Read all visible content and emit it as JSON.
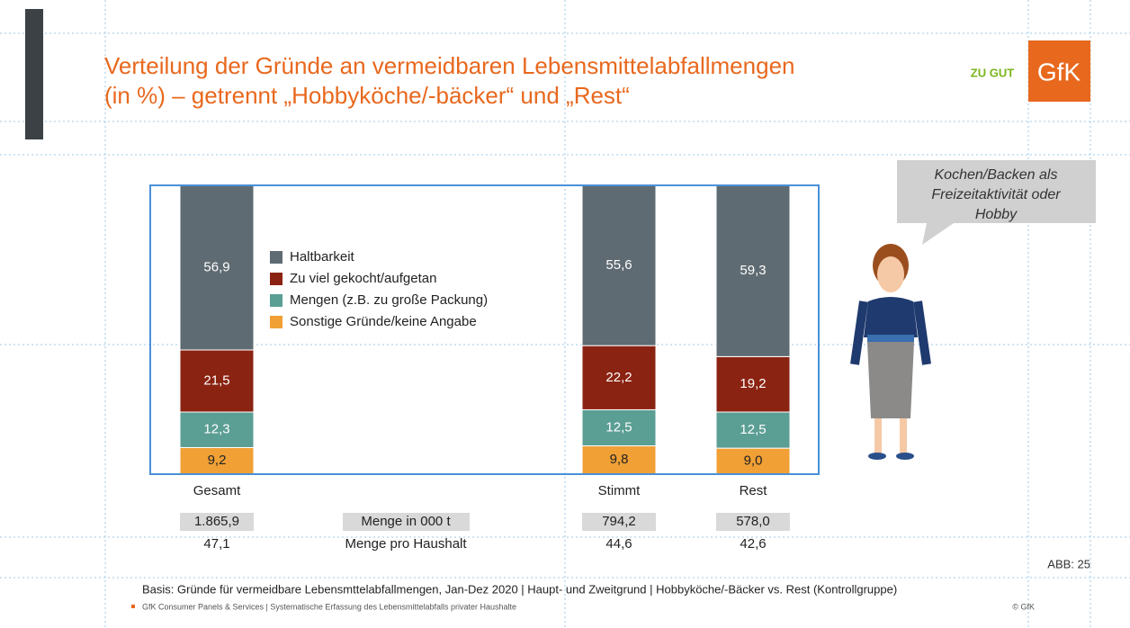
{
  "title_lines": [
    "Verteilung der Gründe an vermeidbaren Lebensmittelabfallmengen",
    "(in %) – getrennt „Hobbyköche/-bäcker“ und „Rest“"
  ],
  "logo": {
    "badge": "ZU GUT",
    "brand": "GfK"
  },
  "callout": [
    "Kochen/Backen als",
    "Freizeitaktivität oder",
    "Hobby"
  ],
  "chart_data": {
    "type": "stacked_bar",
    "categories": [
      "Gesamt",
      null,
      null,
      "Stimmt",
      "Rest"
    ],
    "ylim": [
      0,
      100
    ],
    "series": [
      {
        "name": "Sonstige Gründe/keine Angabe",
        "color": "#f0a035",
        "values": [
          9.2,
          null,
          null,
          9.8,
          9.0
        ],
        "value_labels": [
          "9,2",
          null,
          null,
          "9,8",
          "9,0"
        ]
      },
      {
        "name": "Mengen (z.B. zu große Packung)",
        "color": "#5b9e94",
        "values": [
          12.3,
          null,
          null,
          12.5,
          12.5
        ],
        "value_labels": [
          "12,3",
          null,
          null,
          "12,5",
          "12,5"
        ]
      },
      {
        "name": "Zu viel gekocht/aufgetan",
        "color": "#8b2312",
        "values": [
          21.5,
          null,
          null,
          22.2,
          19.2
        ],
        "value_labels": [
          "21,5",
          null,
          null,
          "22,2",
          "19,2"
        ]
      },
      {
        "name": "Haltbarkeit",
        "color": "#5f6b72",
        "values": [
          56.9,
          null,
          null,
          55.6,
          59.3
        ],
        "value_labels": [
          "56,9",
          null,
          null,
          "55,6",
          "59,3"
        ]
      }
    ]
  },
  "rows": [
    {
      "label": "Menge in 000 t",
      "values": [
        "1.865,9",
        null,
        null,
        "794,2",
        "578,0"
      ]
    },
    {
      "label": "Menge pro Haushalt",
      "values": [
        "47,1",
        null,
        null,
        "44,6",
        "42,6"
      ]
    }
  ],
  "page_number": "ABB: 25",
  "basis": "Basis: Gründe für vermeidbare Lebensmttelabfallmengen, Jan-Dez 2020 | Haupt- und Zweitgrund | Hobbyköche/-Bäcker vs. Rest (Kontrollgruppe)",
  "source": "GfK Consumer Panels & Services | Systematische Erfassung des Lebensmittelabfalls privater Haushalte",
  "copyright": "© GfK"
}
